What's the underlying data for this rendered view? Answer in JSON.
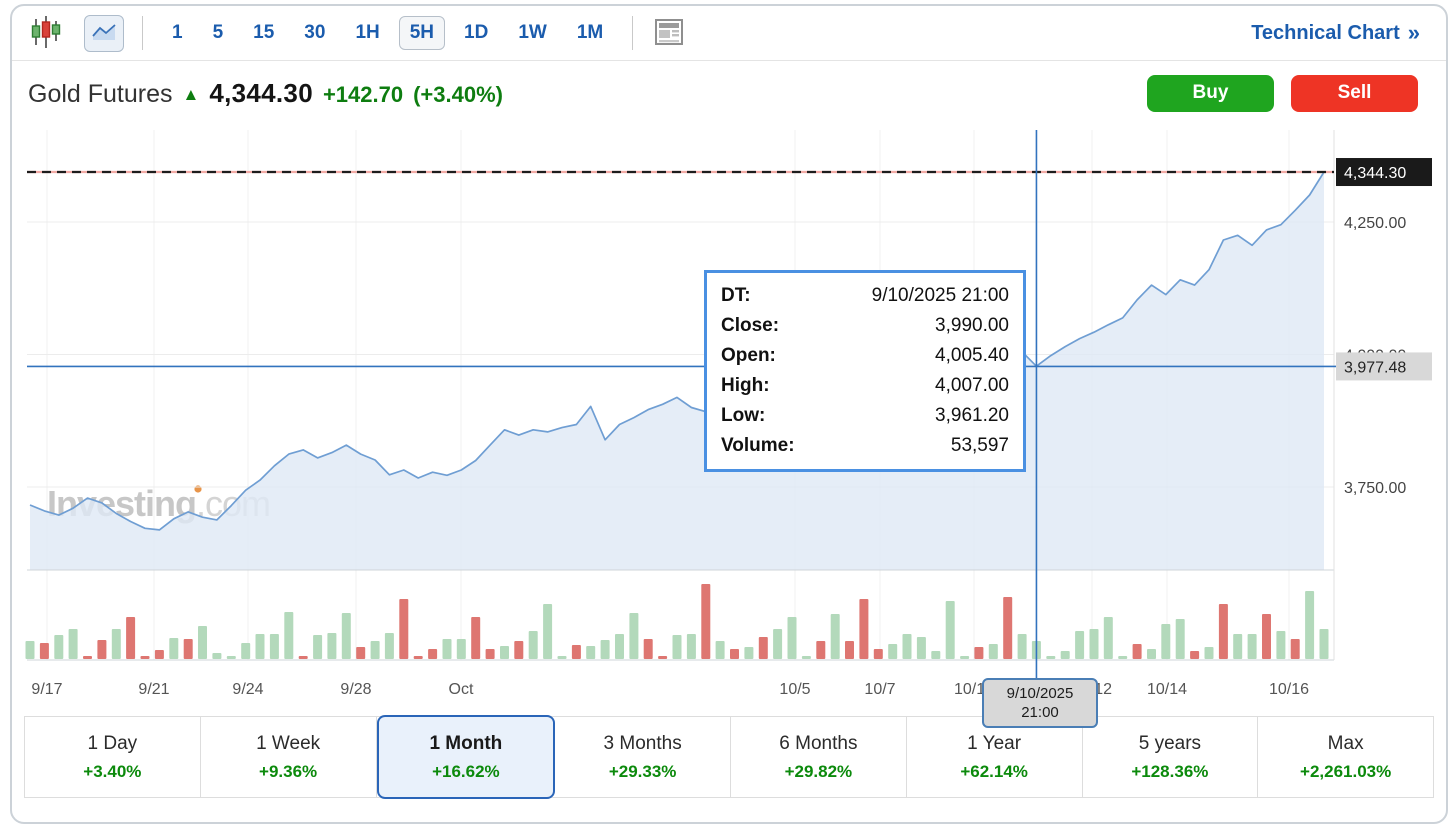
{
  "toolbar": {
    "candlestick_tool": "candlestick-chart",
    "line_tool": "area-line-chart",
    "news_tool": "news",
    "intervals": [
      {
        "label": "1"
      },
      {
        "label": "5"
      },
      {
        "label": "15"
      },
      {
        "label": "30"
      },
      {
        "label": "1H"
      },
      {
        "label": "5H",
        "selected": true
      },
      {
        "label": "1D"
      },
      {
        "label": "1W"
      },
      {
        "label": "1M"
      }
    ],
    "technical_chart": {
      "label": "Technical Chart",
      "arrow": "»"
    }
  },
  "header": {
    "title": "Gold Futures",
    "direction": "up",
    "price": "4,344.30",
    "change": "+142.70",
    "change_pct": "(+3.40%)",
    "buy_label": "Buy",
    "sell_label": "Sell"
  },
  "tooltip": {
    "rows": [
      {
        "label": "DT:",
        "value": "9/10/2025 21:00"
      },
      {
        "label": "Close:",
        "value": "3,990.00"
      },
      {
        "label": "Open:",
        "value": "4,005.40"
      },
      {
        "label": "High:",
        "value": "4,007.00"
      },
      {
        "label": "Low:",
        "value": "3,961.20"
      },
      {
        "label": "Volume:",
        "value": "53,597"
      }
    ]
  },
  "crosshair_label": {
    "date": "9/10/2025",
    "time": "21:00"
  },
  "watermark": {
    "name": "Investing",
    "suffix": ".com"
  },
  "periods": [
    {
      "label": "1 Day",
      "pct": "+3.40%"
    },
    {
      "label": "1 Week",
      "pct": "+9.36%"
    },
    {
      "label": "1 Month",
      "pct": "+16.62%",
      "selected": true
    },
    {
      "label": "3 Months",
      "pct": "+29.33%"
    },
    {
      "label": "6 Months",
      "pct": "+29.82%"
    },
    {
      "label": "1 Year",
      "pct": "+62.14%"
    },
    {
      "label": "5 years",
      "pct": "+128.36%"
    },
    {
      "label": "Max",
      "pct": "+2,261.03%"
    }
  ],
  "colors": {
    "accent_blue": "#1b5cad",
    "crosshair_blue": "#3273be",
    "tooltip_border": "#4a90e2",
    "buy_green": "#1fa51f",
    "sell_red": "#ee3425",
    "change_green": "#0e7d10",
    "line_blue": "#6f9ed3",
    "area_fill": "#dfe9f5",
    "volume_up": "#b3d9bb",
    "volume_down": "#de7671",
    "last_price_box": "#1a1a1a",
    "crosshair_label_bg": "#d8d8d8"
  },
  "chart_data": {
    "type": "area",
    "instrument": "Gold Futures",
    "interval": "5H",
    "last_price": 4344.3,
    "ylim": [
      3640,
      4420
    ],
    "y_gridline_values": [
      4250,
      4000,
      3750
    ],
    "y_labels": [
      {
        "text": "4,344.30",
        "value": 4344.3,
        "kind": "last"
      },
      {
        "text": "4,250.00",
        "value": 4250,
        "kind": "tick"
      },
      {
        "text": "4,000.00",
        "value": 4000,
        "kind": "tick"
      },
      {
        "text": "3,977.48",
        "value": 3977.48,
        "kind": "crosshair"
      },
      {
        "text": "3,750.00",
        "value": 3750,
        "kind": "tick"
      }
    ],
    "x_labels": [
      "9/17",
      "9/21",
      "9/24",
      "9/28",
      "Oct",
      "10/5",
      "10/7",
      "10/10",
      "10/12",
      "10/14",
      "10/16"
    ],
    "crosshair": {
      "index": 70,
      "price": 3977.48,
      "date": "9/10/2025",
      "time": "21:00"
    },
    "hovered_bar": {
      "dt": "9/10/2025 21:00",
      "close": 3990.0,
      "open": 4005.4,
      "high": 4007.0,
      "low": 3961.2,
      "volume": 53597
    },
    "prices": [
      3716,
      3705,
      3697,
      3710,
      3729,
      3720,
      3700,
      3685,
      3672,
      3669,
      3690,
      3703,
      3693,
      3688,
      3715,
      3744,
      3763,
      3790,
      3812,
      3820,
      3805,
      3815,
      3829,
      3812,
      3801,
      3773,
      3782,
      3767,
      3778,
      3772,
      3782,
      3800,
      3829,
      3858,
      3848,
      3858,
      3854,
      3862,
      3868,
      3902,
      3839,
      3868,
      3881,
      3896,
      3906,
      3919,
      3900,
      3892,
      3890,
      3892,
      3896,
      3902,
      3915,
      3922,
      3935,
      3950,
      3962,
      3974,
      3984,
      3994,
      4002,
      4006,
      4010,
      4008,
      4016,
      4042,
      4075,
      4040,
      3998,
      4005,
      3978,
      3998,
      4015,
      4030,
      4042,
      4056,
      4069,
      4103,
      4131,
      4113,
      4141,
      4131,
      4160,
      4216,
      4225,
      4206,
      4235,
      4245,
      4272,
      4301,
      4344.3
    ],
    "volumes": [
      [
        18,
        "g"
      ],
      [
        16,
        "r"
      ],
      [
        24,
        "g"
      ],
      [
        30,
        "g"
      ],
      [
        3,
        "r"
      ],
      [
        19,
        "r"
      ],
      [
        30,
        "g"
      ],
      [
        42,
        "r"
      ],
      [
        3,
        "r"
      ],
      [
        9,
        "r"
      ],
      [
        21,
        "g"
      ],
      [
        20,
        "r"
      ],
      [
        33,
        "g"
      ],
      [
        6,
        "g"
      ],
      [
        3,
        "g"
      ],
      [
        16,
        "g"
      ],
      [
        25,
        "g"
      ],
      [
        25,
        "g"
      ],
      [
        47,
        "g"
      ],
      [
        3,
        "r"
      ],
      [
        24,
        "g"
      ],
      [
        26,
        "g"
      ],
      [
        46,
        "g"
      ],
      [
        12,
        "r"
      ],
      [
        18,
        "g"
      ],
      [
        26,
        "g"
      ],
      [
        60,
        "r"
      ],
      [
        3,
        "r"
      ],
      [
        10,
        "r"
      ],
      [
        20,
        "g"
      ],
      [
        20,
        "g"
      ],
      [
        42,
        "r"
      ],
      [
        10,
        "r"
      ],
      [
        13,
        "g"
      ],
      [
        18,
        "r"
      ],
      [
        28,
        "g"
      ],
      [
        55,
        "g"
      ],
      [
        3,
        "g"
      ],
      [
        14,
        "r"
      ],
      [
        13,
        "g"
      ],
      [
        19,
        "g"
      ],
      [
        25,
        "g"
      ],
      [
        46,
        "g"
      ],
      [
        20,
        "r"
      ],
      [
        3,
        "r"
      ],
      [
        24,
        "g"
      ],
      [
        25,
        "g"
      ],
      [
        75,
        "r"
      ],
      [
        18,
        "g"
      ],
      [
        10,
        "r"
      ],
      [
        12,
        "g"
      ],
      [
        22,
        "r"
      ],
      [
        30,
        "g"
      ],
      [
        42,
        "g"
      ],
      [
        3,
        "g"
      ],
      [
        18,
        "r"
      ],
      [
        45,
        "g"
      ],
      [
        18,
        "r"
      ],
      [
        60,
        "r"
      ],
      [
        10,
        "r"
      ],
      [
        15,
        "g"
      ],
      [
        25,
        "g"
      ],
      [
        22,
        "g"
      ],
      [
        8,
        "g"
      ],
      [
        58,
        "g"
      ],
      [
        3,
        "g"
      ],
      [
        12,
        "r"
      ],
      [
        15,
        "g"
      ],
      [
        62,
        "r"
      ],
      [
        25,
        "g"
      ],
      [
        18,
        "g"
      ],
      [
        3,
        "g"
      ],
      [
        8,
        "g"
      ],
      [
        28,
        "g"
      ],
      [
        30,
        "g"
      ],
      [
        42,
        "g"
      ],
      [
        3,
        "g"
      ],
      [
        15,
        "r"
      ],
      [
        10,
        "g"
      ],
      [
        35,
        "g"
      ],
      [
        40,
        "g"
      ],
      [
        8,
        "r"
      ],
      [
        12,
        "g"
      ],
      [
        55,
        "r"
      ],
      [
        25,
        "g"
      ],
      [
        25,
        "g"
      ],
      [
        45,
        "r"
      ],
      [
        28,
        "g"
      ],
      [
        20,
        "r"
      ],
      [
        68,
        "g"
      ],
      [
        30,
        "g"
      ]
    ]
  }
}
